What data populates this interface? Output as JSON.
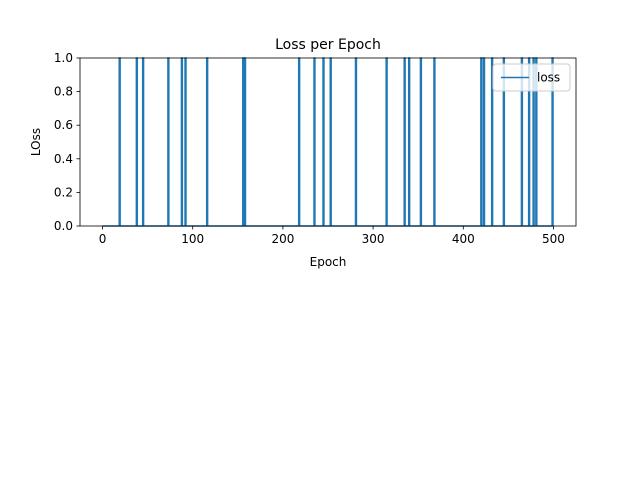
{
  "chart_data": {
    "type": "line",
    "title": "Loss per Epoch",
    "xlabel": "Epoch",
    "ylabel": "LOss",
    "xlim": [
      -25,
      525
    ],
    "ylim": [
      0.0,
      1.0
    ],
    "xticks": [
      0,
      100,
      200,
      300,
      400,
      500
    ],
    "yticks": [
      0.0,
      0.2,
      0.4,
      0.6,
      0.8,
      1.0
    ],
    "grid": false,
    "legend": {
      "position": "top-right",
      "entries": [
        "loss"
      ]
    },
    "series": [
      {
        "name": "loss",
        "color": "#1f77b4",
        "spike_epochs": [
          19,
          38,
          45,
          73,
          88,
          92,
          116,
          156,
          158,
          218,
          235,
          245,
          253,
          281,
          315,
          335,
          340,
          353,
          368,
          420,
          423,
          432,
          445,
          465,
          473,
          478,
          481,
          499
        ],
        "baseline_value": 0.0,
        "spike_value": 1.0,
        "x_range": [
          0,
          499
        ]
      }
    ]
  }
}
